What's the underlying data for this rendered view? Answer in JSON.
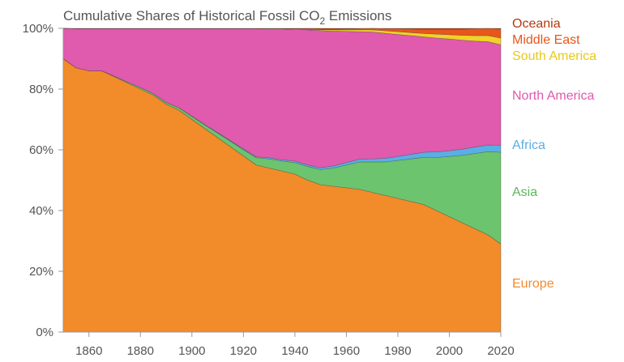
{
  "chart_data": {
    "type": "area",
    "stacked": true,
    "title": {
      "main": "Cumulative Shares of Historical Fossil CO",
      "sub": "2",
      "rest": " Emissions"
    },
    "xlabel": "",
    "ylabel": "",
    "xlim": [
      1850,
      2020
    ],
    "ylim": [
      0,
      100
    ],
    "x_ticks": [
      1860,
      1880,
      1900,
      1920,
      1940,
      1960,
      1980,
      2000,
      2020
    ],
    "x_tick_labels": [
      "1860",
      "1880",
      "1900",
      "1920",
      "1940",
      "1960",
      "1980",
      "2000",
      "2020"
    ],
    "y_ticks": [
      0,
      20,
      40,
      60,
      80,
      100
    ],
    "y_tick_labels": [
      "0%",
      "20%",
      "40%",
      "60%",
      "80%",
      "100%"
    ],
    "x": [
      1850,
      1855,
      1860,
      1865,
      1870,
      1875,
      1880,
      1885,
      1890,
      1895,
      1900,
      1905,
      1910,
      1915,
      1920,
      1925,
      1930,
      1935,
      1940,
      1945,
      1950,
      1955,
      1960,
      1965,
      1970,
      1975,
      1980,
      1985,
      1990,
      1995,
      2000,
      2005,
      2010,
      2015,
      2020
    ],
    "series": [
      {
        "name": "Europe",
        "color": "#f28b2a",
        "values": [
          90,
          87,
          86,
          86,
          84,
          82,
          80,
          78,
          75,
          73,
          70,
          67,
          64,
          61,
          58,
          55,
          54,
          53,
          52,
          50,
          48.5,
          48,
          47.5,
          47,
          46,
          45,
          44,
          43,
          42,
          40,
          38,
          36,
          34,
          32,
          29
        ]
      },
      {
        "name": "Asia",
        "color": "#6cc46e",
        "values": [
          0,
          0,
          0,
          0,
          0.2,
          0.3,
          0.5,
          0.5,
          0.6,
          0.8,
          1,
          1.2,
          1.5,
          1.8,
          2,
          2.4,
          3,
          3.3,
          3.8,
          4.5,
          5,
          6,
          7.5,
          9,
          10,
          11,
          12.5,
          14,
          15.5,
          17.5,
          19.8,
          22.2,
          24.8,
          27.4,
          30.2
        ]
      },
      {
        "name": "Africa",
        "color": "#5aaee4",
        "values": [
          0,
          0,
          0,
          0,
          0,
          0,
          0,
          0,
          0,
          0,
          0.1,
          0.1,
          0.2,
          0.2,
          0.3,
          0.3,
          0.4,
          0.4,
          0.5,
          0.5,
          0.6,
          0.7,
          0.8,
          0.9,
          1.0,
          1.2,
          1.3,
          1.5,
          1.7,
          1.8,
          1.9,
          2.0,
          2.1,
          2.2,
          2.3
        ]
      },
      {
        "name": "North America",
        "color": "#e05aad",
        "values": [
          10,
          12.9,
          13.9,
          13.9,
          15.7,
          17.6,
          19.4,
          21.4,
          24.3,
          26.1,
          28.8,
          31.6,
          34.2,
          36.9,
          39.6,
          42.2,
          42.4,
          43.1,
          43.3,
          44.5,
          45.2,
          44.4,
          43.2,
          42.0,
          41.8,
          41.2,
          40.2,
          39.1,
          38.0,
          37.5,
          36.8,
          35.9,
          34.9,
          34.0,
          33.1
        ]
      },
      {
        "name": "South America",
        "color": "#f2d12a",
        "values": [
          0,
          0,
          0,
          0,
          0,
          0,
          0,
          0,
          0,
          0,
          0,
          0,
          0,
          0,
          0,
          0,
          0.1,
          0.1,
          0.2,
          0.2,
          0.3,
          0.4,
          0.5,
          0.6,
          0.7,
          0.8,
          0.9,
          1.0,
          1.1,
          1.3,
          1.4,
          1.6,
          1.8,
          2.0,
          2.2
        ]
      },
      {
        "name": "Middle East",
        "color": "#e8561a",
        "values": [
          0,
          0,
          0,
          0,
          0,
          0,
          0,
          0,
          0,
          0,
          0,
          0,
          0,
          0,
          0,
          0,
          0,
          0,
          0,
          0.1,
          0.1,
          0.2,
          0.3,
          0.4,
          0.5,
          0.7,
          1.0,
          1.2,
          1.4,
          1.6,
          1.8,
          2.0,
          2.3,
          2.6,
          3.0
        ]
      },
      {
        "name": "Oceania",
        "color": "#b43a10",
        "values": [
          0,
          0.1,
          0.1,
          0.1,
          0.1,
          0.1,
          0.1,
          0.1,
          0.1,
          0.1,
          0.1,
          0.1,
          0.1,
          0.1,
          0.1,
          0.1,
          0.1,
          0.1,
          0.2,
          0.2,
          0.3,
          0.3,
          0.2,
          0.1,
          0,
          0.1,
          0.1,
          0.2,
          0.3,
          0.3,
          0.3,
          0.3,
          0.1,
          0,
          0.2
        ]
      }
    ],
    "legend": {
      "placement": "right",
      "items": [
        {
          "name": "Oceania",
          "color": "#b43a10"
        },
        {
          "name": "Middle East",
          "color": "#e8561a"
        },
        {
          "name": "South America",
          "color": "#e8c81a"
        },
        {
          "name": "North America",
          "color": "#e05aad"
        },
        {
          "name": "Africa",
          "color": "#5aaee4"
        },
        {
          "name": "Asia",
          "color": "#5ab85c"
        },
        {
          "name": "Europe",
          "color": "#f28b2a"
        }
      ]
    }
  }
}
